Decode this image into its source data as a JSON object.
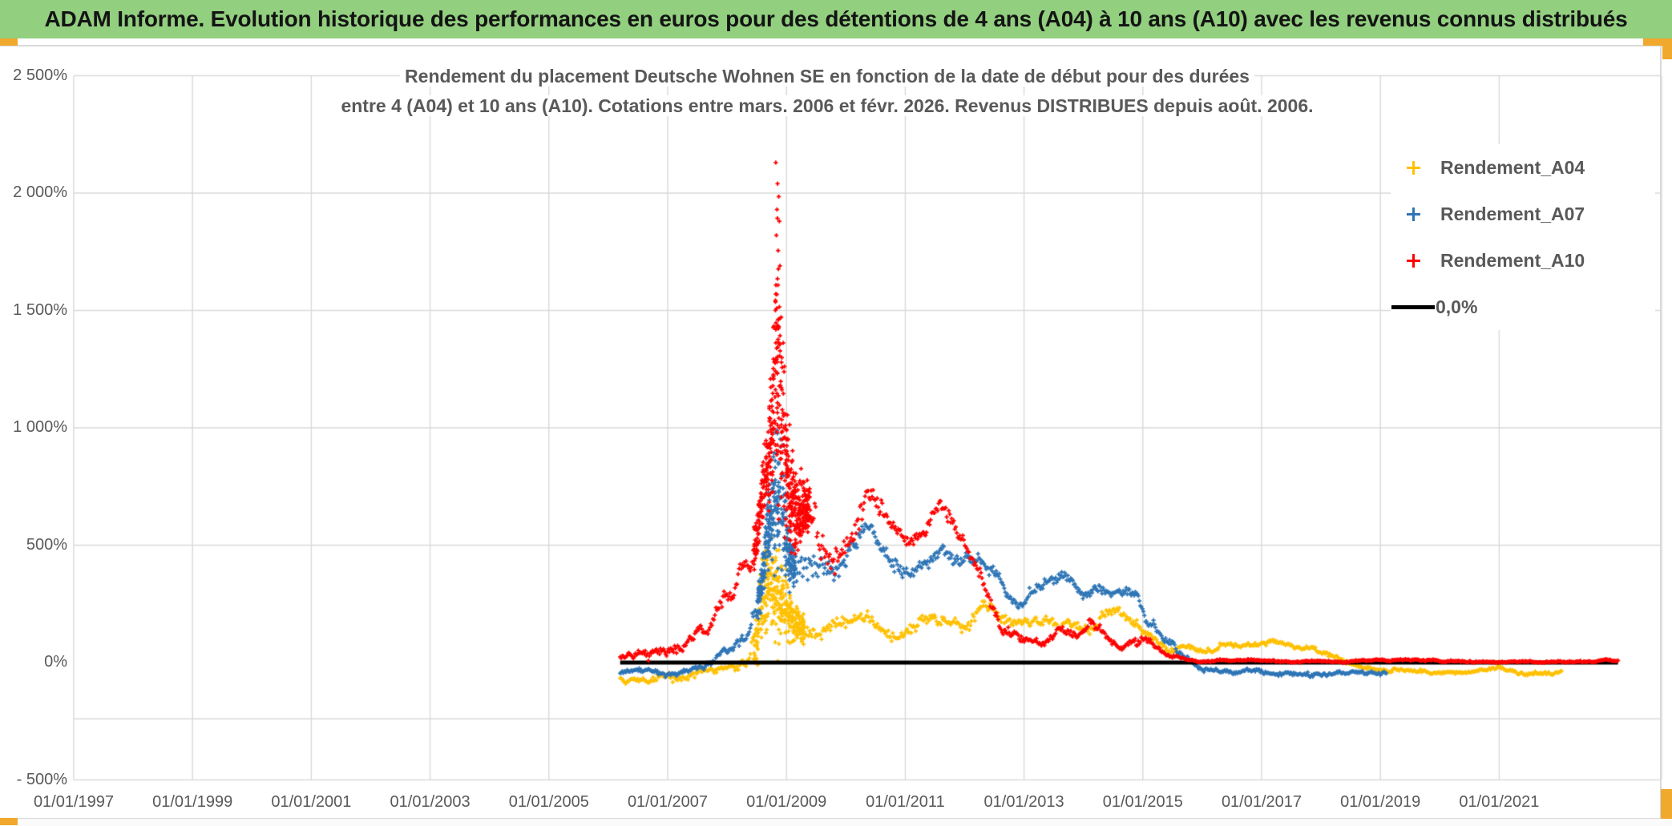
{
  "header": {
    "title": "ADAM Informe. Evolution historique des performances en euros pour des détentions de 4 ans (A04) à 10 ans (A10) avec les revenus connus distribués",
    "bg_color": "#92CF7F",
    "accent_gold_color": "#F0A92C"
  },
  "chart_data": {
    "type": "scatter",
    "title_line1": "Rendement du placement Deutsche Wohnen SE en fonction de la date de début pour des durées",
    "title_line2": "entre 4 (A04) et 10 ans (A10). Cotations entre mars. 2006 et févr. 2026. Revenus DISTRIBUES depuis août. 2006.",
    "x_axis": {
      "labels": [
        "01/01/1997",
        "01/01/1999",
        "01/01/2001",
        "01/01/2003",
        "01/01/2005",
        "01/01/2007",
        "01/01/2009",
        "01/01/2011",
        "01/01/2013",
        "01/01/2015",
        "01/01/2017",
        "01/01/2019",
        "01/01/2021"
      ],
      "start_year": 1997,
      "step_years": 2,
      "grid": true
    },
    "y_axis": {
      "labels": [
        "2 500%",
        "2 000%",
        "1 500%",
        "1 000%",
        "500%",
        "0%",
        "- 500%"
      ],
      "values": [
        2500,
        2000,
        1500,
        1000,
        500,
        0,
        -500
      ],
      "ylim": [
        -500,
        2500
      ],
      "extra_gridline_value": -240,
      "grid": true
    },
    "legend": [
      {
        "label": "Rendement_A04",
        "color": "#FFC000",
        "marker": "plus"
      },
      {
        "label": "Rendement_A07",
        "color": "#2E75B6",
        "marker": "plus"
      },
      {
        "label": "Rendement_A10",
        "color": "#FF0000",
        "marker": "plus"
      },
      {
        "label": "0,0%",
        "color": "#000000",
        "marker": "line"
      }
    ],
    "zero_line": {
      "label": "0,0%",
      "value": 0,
      "start_year": 2006.2,
      "end_year": 2023.0,
      "color": "#000000"
    },
    "series": [
      {
        "name": "Rendement_A04",
        "color": "#FFC000",
        "start": 2006.2,
        "end": 2022.05,
        "samples": 860,
        "extra": {
          "from": 2008.45,
          "to": 2009.3,
          "n": 300
        },
        "anchors": [
          [
            2006.2,
            -70,
            28
          ],
          [
            2006.6,
            -68,
            28
          ],
          [
            2007.0,
            -64,
            28
          ],
          [
            2007.4,
            -55,
            28
          ],
          [
            2007.8,
            -42,
            30
          ],
          [
            2008.1,
            -28,
            34
          ],
          [
            2008.35,
            -5,
            60
          ],
          [
            2008.5,
            90,
            260
          ],
          [
            2008.6,
            280,
            480
          ],
          [
            2008.7,
            350,
            560
          ],
          [
            2008.8,
            300,
            520
          ],
          [
            2008.9,
            280,
            470
          ],
          [
            2009.0,
            230,
            360
          ],
          [
            2009.1,
            180,
            220
          ],
          [
            2009.25,
            160,
            110
          ],
          [
            2009.5,
            140,
            65
          ],
          [
            2009.8,
            130,
            55
          ],
          [
            2010.1,
            150,
            55
          ],
          [
            2010.35,
            195,
            55
          ],
          [
            2010.6,
            160,
            48
          ],
          [
            2010.85,
            120,
            45
          ],
          [
            2011.1,
            150,
            45
          ],
          [
            2011.3,
            185,
            48
          ],
          [
            2011.5,
            190,
            48
          ],
          [
            2011.7,
            165,
            45
          ],
          [
            2011.9,
            150,
            42
          ],
          [
            2012.1,
            170,
            45
          ],
          [
            2012.35,
            215,
            48
          ],
          [
            2012.6,
            180,
            45
          ],
          [
            2012.8,
            150,
            42
          ],
          [
            2013.0,
            140,
            40
          ],
          [
            2013.3,
            150,
            40
          ],
          [
            2013.6,
            165,
            42
          ],
          [
            2013.9,
            180,
            42
          ],
          [
            2014.15,
            165,
            42
          ],
          [
            2014.4,
            215,
            48
          ],
          [
            2014.65,
            195,
            45
          ],
          [
            2014.9,
            150,
            42
          ],
          [
            2015.1,
            115,
            38
          ],
          [
            2015.35,
            85,
            32
          ],
          [
            2015.6,
            55,
            28
          ],
          [
            2015.9,
            45,
            24
          ],
          [
            2016.2,
            70,
            24
          ],
          [
            2016.45,
            80,
            24
          ],
          [
            2016.7,
            55,
            22
          ],
          [
            2017.0,
            70,
            22
          ],
          [
            2017.25,
            85,
            22
          ],
          [
            2017.5,
            70,
            22
          ],
          [
            2017.8,
            60,
            20
          ],
          [
            2018.1,
            30,
            18
          ],
          [
            2018.4,
            0,
            16
          ],
          [
            2018.7,
            -25,
            14
          ],
          [
            2019.0,
            -30,
            14
          ],
          [
            2019.4,
            -35,
            14
          ],
          [
            2019.8,
            -45,
            14
          ],
          [
            2020.1,
            -50,
            14
          ],
          [
            2020.4,
            -55,
            14
          ],
          [
            2020.7,
            -40,
            14
          ],
          [
            2021.0,
            -30,
            14
          ],
          [
            2021.3,
            -45,
            14
          ],
          [
            2021.6,
            -55,
            14
          ],
          [
            2021.9,
            -50,
            14
          ],
          [
            2022.05,
            -45,
            14
          ]
        ]
      },
      {
        "name": "Rendement_A07",
        "color": "#2E75B6",
        "start": 2006.2,
        "end": 2019.1,
        "samples": 760,
        "extra": {
          "from": 2008.5,
          "to": 2009.15,
          "n": 280
        },
        "anchors": [
          [
            2006.2,
            -45,
            20
          ],
          [
            2006.6,
            -48,
            20
          ],
          [
            2007.0,
            -45,
            20
          ],
          [
            2007.3,
            -35,
            20
          ],
          [
            2007.6,
            -12,
            22
          ],
          [
            2007.9,
            48,
            26
          ],
          [
            2008.05,
            40,
            26
          ],
          [
            2008.2,
            78,
            32
          ],
          [
            2008.35,
            118,
            44
          ],
          [
            2008.5,
            230,
            130
          ],
          [
            2008.6,
            380,
            260
          ],
          [
            2008.7,
            600,
            460
          ],
          [
            2008.8,
            700,
            720
          ],
          [
            2008.88,
            760,
            820
          ],
          [
            2008.95,
            600,
            620
          ],
          [
            2009.05,
            450,
            320
          ],
          [
            2009.2,
            370,
            160
          ],
          [
            2009.4,
            390,
            130
          ],
          [
            2009.6,
            380,
            110
          ],
          [
            2009.8,
            350,
            95
          ],
          [
            2010.0,
            420,
            95
          ],
          [
            2010.2,
            520,
            85
          ],
          [
            2010.4,
            600,
            85
          ],
          [
            2010.6,
            480,
            75
          ],
          [
            2010.8,
            420,
            65
          ],
          [
            2011.0,
            370,
            62
          ],
          [
            2011.2,
            390,
            62
          ],
          [
            2011.45,
            460,
            68
          ],
          [
            2011.6,
            500,
            68
          ],
          [
            2011.8,
            450,
            62
          ],
          [
            2012.0,
            430,
            62
          ],
          [
            2012.2,
            460,
            62
          ],
          [
            2012.4,
            420,
            58
          ],
          [
            2012.6,
            340,
            52
          ],
          [
            2012.8,
            270,
            48
          ],
          [
            2013.0,
            240,
            46
          ],
          [
            2013.2,
            290,
            48
          ],
          [
            2013.4,
            345,
            48
          ],
          [
            2013.6,
            350,
            46
          ],
          [
            2013.8,
            330,
            42
          ],
          [
            2014.0,
            300,
            42
          ],
          [
            2014.2,
            320,
            42
          ],
          [
            2014.45,
            310,
            42
          ],
          [
            2014.7,
            320,
            42
          ],
          [
            2014.9,
            290,
            46
          ],
          [
            2015.05,
            180,
            64
          ],
          [
            2015.2,
            130,
            48
          ],
          [
            2015.4,
            80,
            36
          ],
          [
            2015.6,
            40,
            26
          ],
          [
            2015.8,
            10,
            20
          ],
          [
            2016.0,
            -20,
            16
          ],
          [
            2016.3,
            -40,
            16
          ],
          [
            2016.7,
            -45,
            16
          ],
          [
            2017.1,
            -40,
            16
          ],
          [
            2017.5,
            -50,
            16
          ],
          [
            2017.9,
            -55,
            16
          ],
          [
            2018.3,
            -55,
            16
          ],
          [
            2018.7,
            -50,
            16
          ],
          [
            2019.1,
            -45,
            16
          ]
        ]
      },
      {
        "name": "Rendement_A10",
        "color": "#FF0000",
        "start": 2006.2,
        "end": 2023.0,
        "samples": 990,
        "extra": {
          "from": 2008.45,
          "to": 2009.4,
          "n": 450
        },
        "outliers": [
          [
            2008.82,
            2130
          ],
          [
            2008.85,
            2040
          ],
          [
            2008.87,
            1985
          ],
          [
            2008.84,
            1930
          ],
          [
            2008.88,
            1880
          ],
          [
            2008.83,
            1820
          ],
          [
            2008.86,
            1755
          ],
          [
            2008.89,
            1690
          ],
          [
            2008.85,
            1635
          ],
          [
            2008.82,
            1570
          ],
          [
            2008.88,
            1515
          ],
          [
            2008.86,
            1460
          ]
        ],
        "anchors": [
          [
            2006.2,
            25,
            36
          ],
          [
            2006.5,
            55,
            36
          ],
          [
            2006.75,
            45,
            36
          ],
          [
            2007.0,
            25,
            36
          ],
          [
            2007.2,
            65,
            42
          ],
          [
            2007.4,
            130,
            52
          ],
          [
            2007.55,
            185,
            56
          ],
          [
            2007.7,
            150,
            52
          ],
          [
            2007.85,
            230,
            62
          ],
          [
            2008.0,
            300,
            72
          ],
          [
            2008.1,
            275,
            66
          ],
          [
            2008.25,
            430,
            92
          ],
          [
            2008.4,
            400,
            92
          ],
          [
            2008.5,
            520,
            230
          ],
          [
            2008.6,
            720,
            430
          ],
          [
            2008.7,
            880,
            540
          ],
          [
            2008.8,
            1150,
            1080
          ],
          [
            2008.87,
            1300,
            1520
          ],
          [
            2008.93,
            1050,
            1180
          ],
          [
            2009.0,
            800,
            720
          ],
          [
            2009.08,
            680,
            520
          ],
          [
            2009.18,
            620,
            430
          ],
          [
            2009.3,
            650,
            330
          ],
          [
            2009.45,
            640,
            250
          ],
          [
            2009.6,
            500,
            175
          ],
          [
            2009.8,
            430,
            125
          ],
          [
            2010.0,
            500,
            115
          ],
          [
            2010.2,
            610,
            105
          ],
          [
            2010.4,
            730,
            98
          ],
          [
            2010.6,
            630,
            88
          ],
          [
            2010.75,
            560,
            82
          ],
          [
            2010.9,
            520,
            76
          ],
          [
            2011.05,
            480,
            72
          ],
          [
            2011.25,
            505,
            72
          ],
          [
            2011.45,
            580,
            76
          ],
          [
            2011.6,
            640,
            76
          ],
          [
            2011.75,
            620,
            72
          ],
          [
            2011.9,
            560,
            66
          ],
          [
            2012.05,
            480,
            70
          ],
          [
            2012.2,
            420,
            66
          ],
          [
            2012.35,
            300,
            60
          ],
          [
            2012.5,
            230,
            56
          ],
          [
            2012.65,
            165,
            46
          ],
          [
            2012.8,
            135,
            40
          ],
          [
            2012.95,
            120,
            38
          ],
          [
            2013.1,
            128,
            36
          ],
          [
            2013.3,
            95,
            32
          ],
          [
            2013.45,
            115,
            32
          ],
          [
            2013.6,
            138,
            32
          ],
          [
            2013.75,
            120,
            30
          ],
          [
            2013.9,
            112,
            30
          ],
          [
            2014.1,
            160,
            32
          ],
          [
            2014.25,
            140,
            30
          ],
          [
            2014.4,
            115,
            28
          ],
          [
            2014.55,
            78,
            26
          ],
          [
            2014.7,
            70,
            25
          ],
          [
            2014.85,
            88,
            25
          ],
          [
            2015.0,
            112,
            26
          ],
          [
            2015.15,
            95,
            24
          ],
          [
            2015.3,
            60,
            22
          ],
          [
            2015.5,
            38,
            18
          ],
          [
            2015.7,
            22,
            14
          ],
          [
            2015.9,
            12,
            10
          ],
          [
            2016.1,
            8,
            8
          ],
          [
            2016.5,
            7,
            7
          ],
          [
            2017.0,
            7,
            7
          ],
          [
            2023.0,
            7,
            7
          ]
        ]
      }
    ],
    "grid_color": "#D9D9D9",
    "title_color": "#595959"
  }
}
